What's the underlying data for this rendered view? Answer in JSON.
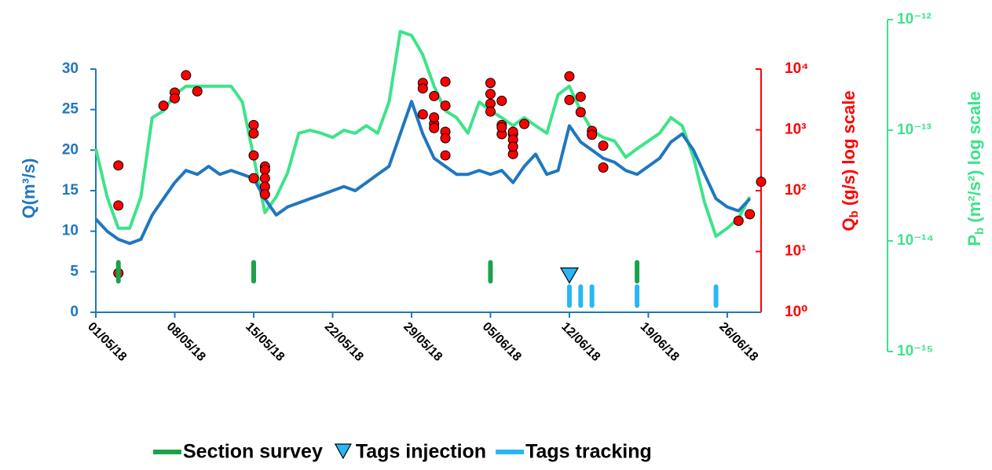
{
  "chart_data": {
    "type": "line",
    "x": [
      "01/05/18",
      "02/05/18",
      "03/05/18",
      "04/05/18",
      "05/05/18",
      "06/05/18",
      "07/05/18",
      "08/05/18",
      "09/05/18",
      "10/05/18",
      "11/05/18",
      "12/05/18",
      "13/05/18",
      "14/05/18",
      "15/05/18",
      "16/05/18",
      "17/05/18",
      "18/05/18",
      "19/05/18",
      "20/05/18",
      "21/05/18",
      "22/05/18",
      "23/05/18",
      "24/05/18",
      "25/05/18",
      "26/05/18",
      "27/05/18",
      "28/05/18",
      "29/05/18",
      "30/05/18",
      "31/05/18",
      "01/06/18",
      "02/06/18",
      "03/06/18",
      "04/06/18",
      "05/06/18",
      "06/06/18",
      "07/06/18",
      "08/06/18",
      "09/06/18",
      "10/06/18",
      "11/06/18",
      "12/06/18",
      "13/06/18",
      "14/06/18",
      "15/06/18",
      "16/06/18",
      "17/06/18",
      "18/06/18",
      "19/06/18",
      "20/06/18",
      "21/06/18",
      "22/06/18",
      "23/06/18",
      "24/06/18",
      "25/06/18",
      "26/06/18",
      "27/06/18",
      "28/06/18"
    ],
    "xlim": [
      "01/05/18",
      "29/06/18"
    ],
    "xticks": [
      "01/05/18",
      "08/05/18",
      "15/05/18",
      "22/05/18",
      "29/05/18",
      "05/06/18",
      "12/06/18",
      "19/06/18",
      "26/06/18"
    ],
    "ylabel": "Q(m³/s)",
    "ylim": [
      0,
      30
    ],
    "yticks": [
      0,
      5,
      10,
      15,
      20,
      25,
      30
    ],
    "y2label": {
      "main": "Q",
      "sub": "b",
      "rest": " (g/s) log scale"
    },
    "y2log": true,
    "y2lim": [
      1,
      10000
    ],
    "y2ticks": [
      {
        "value": 1,
        "label": "10⁰"
      },
      {
        "value": 10,
        "label": "10¹"
      },
      {
        "value": 100,
        "label": "10²"
      },
      {
        "value": 1000,
        "label": "10³"
      },
      {
        "value": 10000,
        "label": "10⁴"
      }
    ],
    "y3label": {
      "main": "P",
      "sub": "b",
      "rest": " (m²/s²) log scale"
    },
    "y3log": true,
    "y3lim": [
      1e-15,
      1e-12
    ],
    "y3ticks": [
      {
        "value": 1e-15,
        "label": "10⁻¹⁵"
      },
      {
        "value": 1e-14,
        "label": "10⁻¹⁴"
      },
      {
        "value": 1e-13,
        "label": "10⁻¹³"
      },
      {
        "value": 1e-12,
        "label": "10⁻¹²"
      }
    ],
    "axis_colors": {
      "y": "#1f77c0",
      "y2": "#ff0000",
      "y3": "#3ee38b"
    },
    "series": [
      {
        "type": "line",
        "axis": "y3",
        "color": "#3ee38b",
        "values": [
          6.8e-14,
          2.5e-14,
          1.3e-14,
          1.3e-14,
          2.5e-14,
          1.3e-13,
          1.5e-13,
          2.1e-13,
          2.5e-13,
          2.5e-13,
          2.5e-13,
          2.5e-13,
          2.5e-13,
          1.8e-13,
          5.7e-14,
          1.8e-14,
          2.5e-14,
          4.1e-14,
          9.4e-14,
          1e-13,
          9.4e-14,
          8.6e-14,
          1e-13,
          9.4e-14,
          1.1e-13,
          9.4e-14,
          1.8e-13,
          7.8e-13,
          7.2e-13,
          4.8e-13,
          2.5e-13,
          1.5e-13,
          1.3e-13,
          9.4e-14,
          1.8e-13,
          1.5e-13,
          1.3e-13,
          1.1e-13,
          1.3e-13,
          1.1e-13,
          9.4e-14,
          2.1e-13,
          2.5e-13,
          1.5e-13,
          1e-13,
          8.6e-14,
          8e-14,
          5.7e-14,
          6.8e-14,
          8e-14,
          9.4e-14,
          1.3e-13,
          1.1e-13,
          5.7e-14,
          2.2e-14,
          1.1e-14,
          1.3e-14,
          1.6e-14,
          2.5e-14
        ]
      },
      {
        "type": "line",
        "axis": "y",
        "color": "#1f77c0",
        "values": [
          11.5,
          10,
          9,
          8.5,
          9,
          12,
          14,
          16,
          17.5,
          17,
          18,
          17,
          17.5,
          17,
          16.5,
          14,
          12,
          13,
          13.5,
          14,
          14.5,
          15,
          15.5,
          15,
          16,
          17,
          18,
          22,
          26,
          22,
          19,
          18,
          17,
          17,
          17.5,
          17,
          17.5,
          16,
          18,
          19.5,
          17,
          17.5,
          23,
          21,
          20,
          19,
          18.5,
          17.5,
          17,
          18,
          19,
          21,
          22,
          20,
          17,
          14,
          13,
          12.5,
          14
        ]
      },
      {
        "type": "scatter",
        "axis": "y2",
        "color": "#ff0000",
        "marker": "circle",
        "x": [
          "03/05/18",
          "03/05/18",
          "03/05/18",
          "07/05/18",
          "08/05/18",
          "08/05/18",
          "09/05/18",
          "10/05/18",
          "15/05/18",
          "15/05/18",
          "15/05/18",
          "15/05/18",
          "16/05/18",
          "16/05/18",
          "16/05/18",
          "16/05/18",
          "16/05/18",
          "30/05/18",
          "30/05/18",
          "31/05/18",
          "30/05/18",
          "31/05/18",
          "31/05/18",
          "31/05/18",
          "01/06/18",
          "01/06/18",
          "01/06/18",
          "01/06/18",
          "01/06/18",
          "05/06/18",
          "05/06/18",
          "05/06/18",
          "05/06/18",
          "06/06/18",
          "06/06/18",
          "06/06/18",
          "06/06/18",
          "07/06/18",
          "07/06/18",
          "07/06/18",
          "07/06/18",
          "07/06/18",
          "08/06/18",
          "12/06/18",
          "12/06/18",
          "13/06/18",
          "13/06/18",
          "14/06/18",
          "14/06/18",
          "15/06/18",
          "15/06/18",
          "27/06/18",
          "28/06/18",
          "29/06/18"
        ],
        "values": [
          260,
          57,
          4.4,
          2500,
          4100,
          3300,
          7900,
          4300,
          1200,
          870,
          380,
          160,
          250,
          220,
          160,
          116,
          87,
          5900,
          4800,
          3600,
          1800,
          1250,
          1600,
          1070,
          930,
          2500,
          6200,
          730,
          380,
          5900,
          3900,
          2700,
          2000,
          1200,
          850,
          3000,
          1100,
          850,
          400,
          930,
          690,
          530,
          1250,
          7600,
          3100,
          3500,
          1950,
          960,
          830,
          550,
          240,
          32,
          41,
          140
        ]
      },
      {
        "type": "scatter",
        "axis": "y",
        "name": "Section survey",
        "color": "#1aa34a",
        "marker": "dash",
        "legend": true,
        "x": [
          "03/05/18",
          "15/05/18",
          "05/06/18",
          "18/06/18"
        ],
        "values": [
          5,
          5,
          5,
          5
        ]
      },
      {
        "type": "scatter",
        "axis": "y",
        "name": "Tags injection",
        "color": "#29b6f6",
        "marker": "triangle",
        "legend": true,
        "x": [
          "12/06/18"
        ],
        "values": [
          4.5
        ]
      },
      {
        "type": "scatter",
        "axis": "y",
        "name": "Tags tracking",
        "color": "#29b6f6",
        "marker": "dash",
        "legend": true,
        "x": [
          "12/06/18",
          "13/06/18",
          "14/06/18",
          "18/06/18",
          "25/06/18"
        ],
        "values": [
          2,
          2,
          2,
          2,
          2
        ]
      }
    ]
  }
}
